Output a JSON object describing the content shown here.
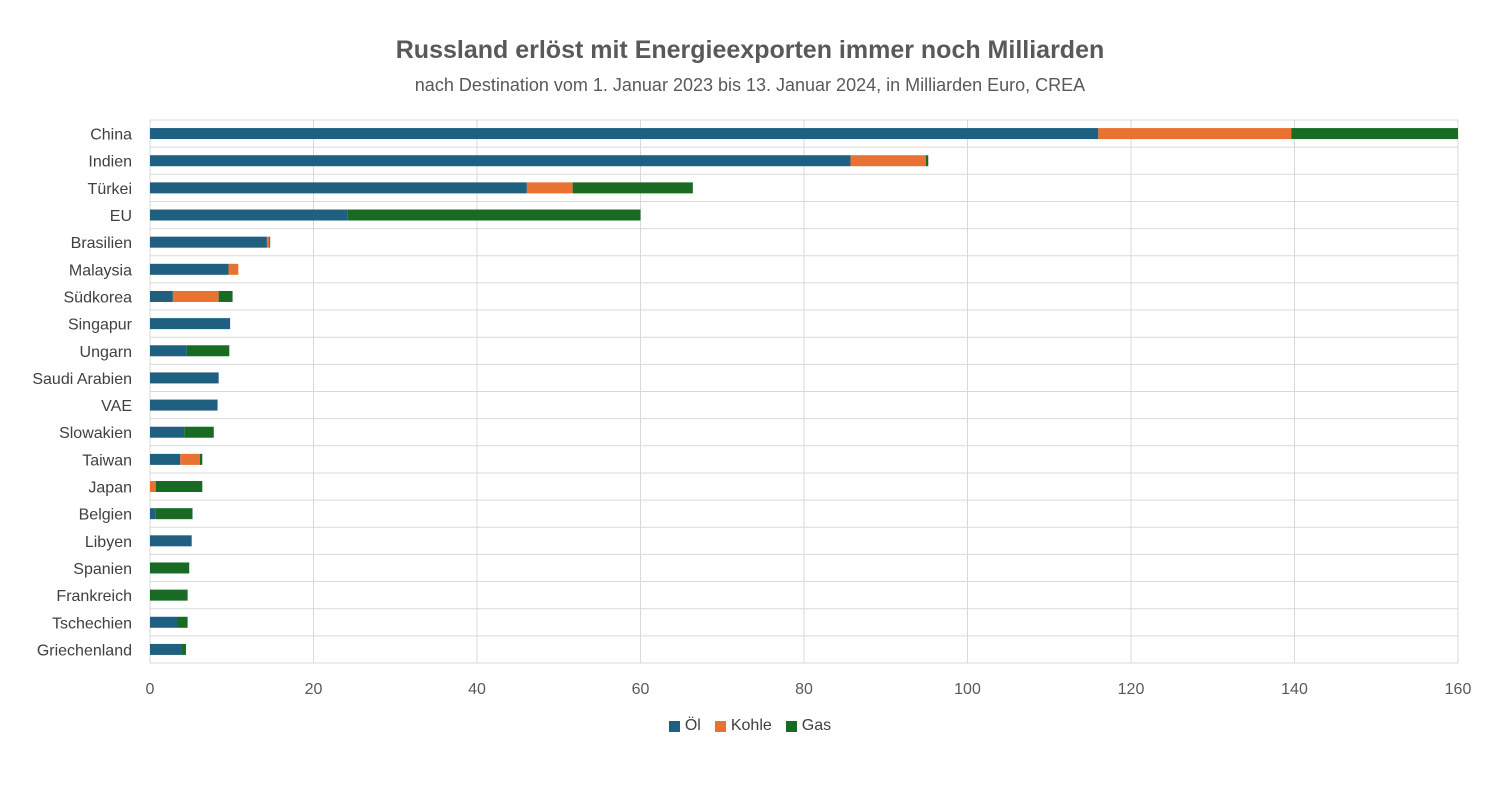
{
  "chart_data": {
    "type": "bar",
    "orientation": "horizontal",
    "stacked": true,
    "title": "Russland erlöst mit Energieexporten immer noch Milliarden",
    "subtitle": "nach Destination vom 1. Januar 2023 bis 13. Januar 2024, in Milliarden Euro, CREA",
    "categories": [
      "China",
      "Indien",
      "Türkei",
      "EU",
      "Brasilien",
      "Malaysia",
      "Südkorea",
      "Singapur",
      "Ungarn",
      "Saudi Arabien",
      "VAE",
      "Slowakien",
      "Taiwan",
      "Japan",
      "Belgien",
      "Libyen",
      "Spanien",
      "Frankreich",
      "Tschechien",
      "Griechenland"
    ],
    "series": [
      {
        "name": "Öl",
        "color": "#1F5F7F",
        "values": [
          116,
          85.7,
          46.1,
          24.2,
          14.3,
          9.6,
          2.8,
          9.8,
          4.5,
          8.4,
          8.2,
          4.2,
          3.7,
          0,
          0.7,
          5.1,
          0,
          0,
          3.3,
          3.8
        ]
      },
      {
        "name": "Kohle",
        "color": "#E97132",
        "values": [
          23.6,
          9.2,
          5.6,
          0,
          0.3,
          1.2,
          5.6,
          0,
          0,
          0,
          0.1,
          0,
          2.4,
          0.7,
          0,
          0,
          0,
          0,
          0,
          0
        ]
      },
      {
        "name": "Gas",
        "color": "#196B24",
        "values": [
          20.4,
          0.3,
          14.7,
          35.8,
          0.1,
          0,
          1.7,
          0,
          5.2,
          0,
          0,
          3.6,
          0.3,
          5.7,
          4.5,
          0,
          4.8,
          4.6,
          1.3,
          0.6
        ]
      }
    ],
    "xlim": [
      0,
      160
    ],
    "xticks": [
      0,
      20,
      40,
      60,
      80,
      100,
      120,
      140,
      160
    ],
    "grid": true,
    "legend_position": "bottom"
  }
}
